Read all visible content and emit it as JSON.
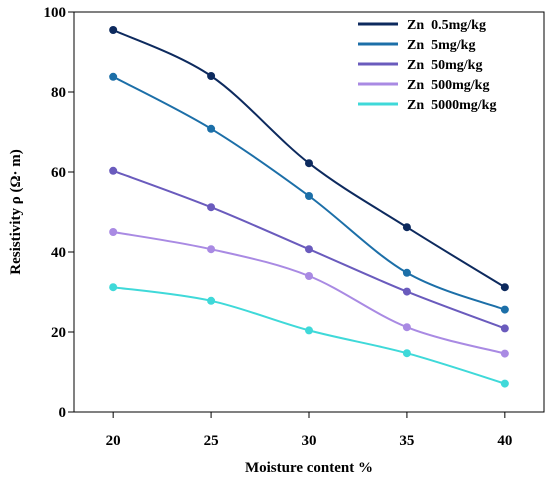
{
  "chart_data": {
    "type": "line",
    "title": "",
    "xlabel": "Moisture content %",
    "ylabel": "Resistivity ρ (Ω· m)",
    "x": [
      20,
      25,
      30,
      35,
      40
    ],
    "xlim": [
      18,
      42
    ],
    "ylim": [
      0,
      100
    ],
    "xticks": [
      20,
      25,
      30,
      35,
      40
    ],
    "yticks": [
      0,
      20,
      40,
      60,
      80,
      100
    ],
    "grid": false,
    "legend_position": "top-right",
    "smooth": true,
    "series": [
      {
        "name": "Zn  0.5mg/kg",
        "color": "#0d2a5e",
        "values": [
          95.5,
          84.0,
          62.2,
          46.2,
          31.2
        ]
      },
      {
        "name": "Zn  5mg/kg",
        "color": "#1c6fa8",
        "values": [
          83.8,
          70.8,
          54.0,
          34.8,
          25.6
        ]
      },
      {
        "name": "Zn  50mg/kg",
        "color": "#6a5bbd",
        "values": [
          60.3,
          51.2,
          40.7,
          30.1,
          20.9
        ]
      },
      {
        "name": "Zn  500mg/kg",
        "color": "#a98ae3",
        "values": [
          45.0,
          40.7,
          34.0,
          21.2,
          14.6
        ]
      },
      {
        "name": "Zn  5000mg/kg",
        "color": "#3fd9d9",
        "values": [
          31.2,
          27.8,
          20.4,
          14.7,
          7.1
        ]
      }
    ]
  }
}
